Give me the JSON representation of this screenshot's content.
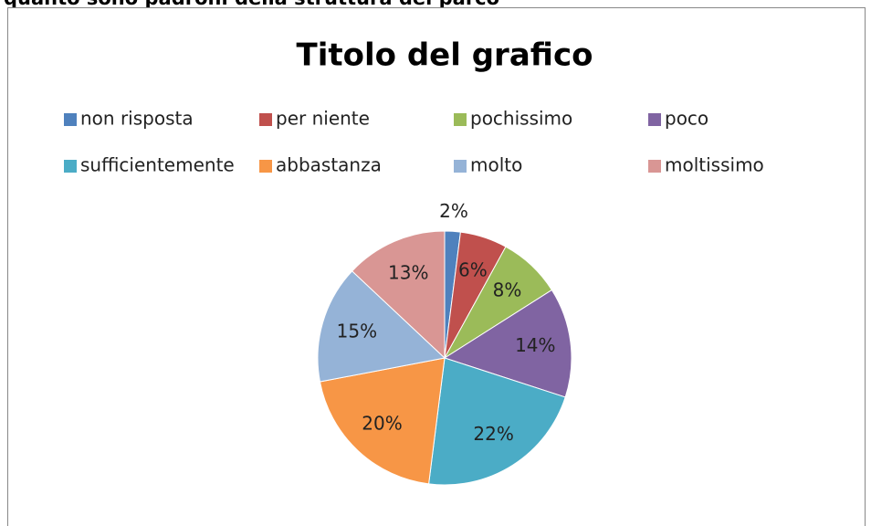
{
  "header": "quanto sono padroni della struttura del parco",
  "chart_data": {
    "type": "pie",
    "title": "Titolo del grafico",
    "categories": [
      "non risposta",
      "per niente",
      "pochissimo",
      "poco",
      "sufficientemente",
      "abbastanza",
      "molto",
      "moltissimo"
    ],
    "values": [
      2,
      6,
      8,
      14,
      22,
      20,
      15,
      13
    ],
    "value_labels": [
      "2%",
      "6%",
      "8%",
      "14%",
      "22%",
      "20%",
      "15%",
      "13%"
    ],
    "colors": [
      "#4f81bd",
      "#c0504d",
      "#9bbb59",
      "#8064a2",
      "#4bacc6",
      "#f79646",
      "#95b3d7",
      "#d99694"
    ],
    "legend": "top"
  }
}
